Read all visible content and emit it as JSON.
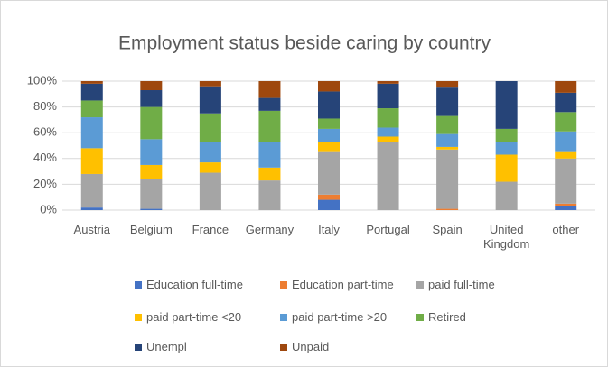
{
  "chart_data": {
    "type": "stacked_bar",
    "title": "Employment status beside caring by country",
    "categories": [
      "Austria",
      "Belgium",
      "France",
      "Germany",
      "Italy",
      "Portugal",
      "Spain",
      "United Kingdom",
      "other"
    ],
    "series": [
      {
        "name": "Education full-time",
        "color": "#4472c4",
        "values": [
          2,
          1,
          0,
          0,
          8,
          0,
          0,
          0,
          3
        ]
      },
      {
        "name": "Education part-time",
        "color": "#ed7d31",
        "values": [
          0,
          0,
          0,
          0,
          4,
          0,
          1,
          0,
          2
        ]
      },
      {
        "name": "paid full-time",
        "color": "#a5a5a5",
        "values": [
          26,
          23,
          29,
          23,
          33,
          53,
          46,
          22,
          35
        ]
      },
      {
        "name": "paid part-time <20",
        "color": "#ffc000",
        "values": [
          20,
          11,
          8,
          10,
          8,
          4,
          2,
          21,
          5
        ]
      },
      {
        "name": "paid part-time >20",
        "color": "#5b9bd5",
        "values": [
          24,
          20,
          16,
          20,
          10,
          7,
          10,
          10,
          16
        ]
      },
      {
        "name": "Retired",
        "color": "#70ad47",
        "values": [
          13,
          25,
          22,
          24,
          8,
          15,
          14,
          10,
          15
        ]
      },
      {
        "name": "Unempl",
        "color": "#264478",
        "values": [
          13,
          13,
          21,
          10,
          21,
          19,
          22,
          37,
          15
        ]
      },
      {
        "name": "Unpaid",
        "color": "#9e480e",
        "values": [
          2,
          7,
          4,
          13,
          8,
          2,
          5,
          0,
          9
        ]
      }
    ],
    "ylim": [
      0,
      100
    ],
    "yticks": [
      {
        "value": 0,
        "label": "0%"
      },
      {
        "value": 20,
        "label": "20%"
      },
      {
        "value": 40,
        "label": "40%"
      },
      {
        "value": 60,
        "label": "60%"
      },
      {
        "value": 80,
        "label": "80%"
      },
      {
        "value": 100,
        "label": "100%"
      }
    ],
    "grid": true
  }
}
